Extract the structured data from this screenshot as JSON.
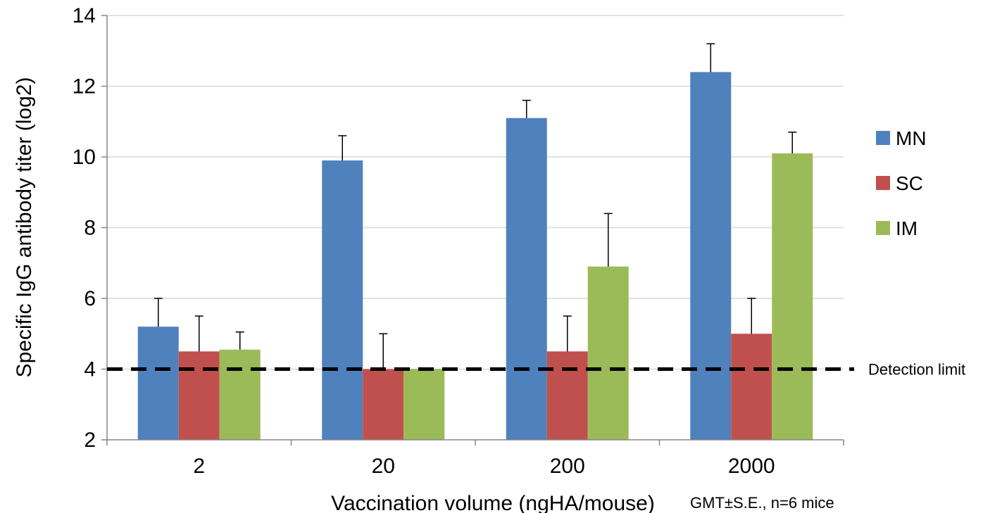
{
  "chart_data": {
    "type": "bar",
    "categories": [
      "2",
      "20",
      "200",
      "2000"
    ],
    "series": [
      {
        "name": "MN",
        "values": [
          5.2,
          9.9,
          11.1,
          12.4
        ],
        "errors": [
          0.8,
          0.7,
          0.5,
          0.8
        ],
        "color": "#4f81bd"
      },
      {
        "name": "SC",
        "values": [
          4.5,
          4.0,
          4.5,
          5.0
        ],
        "errors": [
          1.0,
          1.0,
          1.0,
          1.0
        ],
        "color": "#c0504d"
      },
      {
        "name": "IM",
        "values": [
          4.55,
          4.0,
          6.9,
          10.1
        ],
        "errors": [
          0.5,
          0.0,
          1.5,
          0.6
        ],
        "color": "#9bbb59"
      }
    ],
    "title": "",
    "xlabel": "Vaccination volume (ngHA/mouse)",
    "ylabel": "Specific IgG antibody titer (log2)",
    "ylim": [
      2,
      14
    ],
    "yticks": [
      "2",
      "4",
      "6",
      "8",
      "10",
      "12",
      "14"
    ],
    "grid": true,
    "legend_position": "right",
    "reference_line": {
      "value": 4,
      "label": "Detection limit",
      "style": "dashed"
    },
    "note": "GMT±S.E., n=6 mice"
  }
}
